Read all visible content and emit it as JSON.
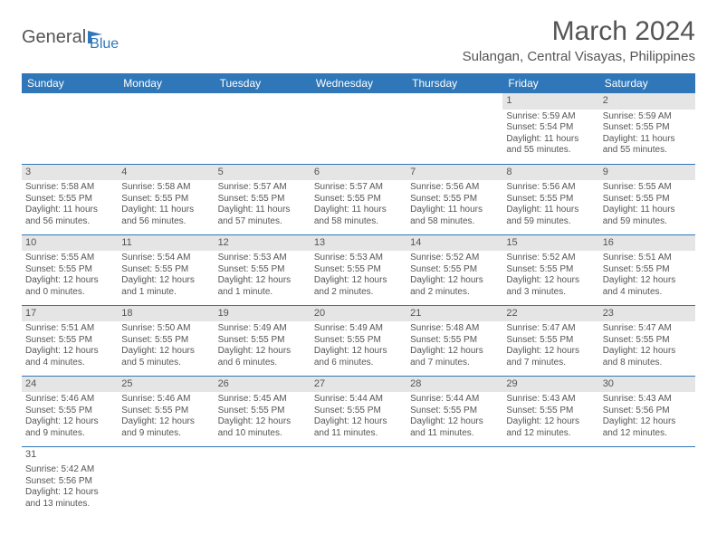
{
  "logo": {
    "text1": "General",
    "text2": "Blue"
  },
  "title": "March 2024",
  "location": "Sulangan, Central Visayas, Philippines",
  "dayHeaders": [
    "Sunday",
    "Monday",
    "Tuesday",
    "Wednesday",
    "Thursday",
    "Friday",
    "Saturday"
  ],
  "colors": {
    "headerBg": "#2f77b8",
    "headerText": "#ffffff",
    "bodyText": "#555555",
    "dayNumBg": "#e5e5e5",
    "cellBorder": "#2f77b8",
    "background": "#ffffff"
  },
  "weeks": [
    [
      null,
      null,
      null,
      null,
      null,
      {
        "num": "1",
        "sunrise": "Sunrise: 5:59 AM",
        "sunset": "Sunset: 5:54 PM",
        "daylight": "Daylight: 11 hours and 55 minutes."
      },
      {
        "num": "2",
        "sunrise": "Sunrise: 5:59 AM",
        "sunset": "Sunset: 5:55 PM",
        "daylight": "Daylight: 11 hours and 55 minutes."
      }
    ],
    [
      {
        "num": "3",
        "sunrise": "Sunrise: 5:58 AM",
        "sunset": "Sunset: 5:55 PM",
        "daylight": "Daylight: 11 hours and 56 minutes."
      },
      {
        "num": "4",
        "sunrise": "Sunrise: 5:58 AM",
        "sunset": "Sunset: 5:55 PM",
        "daylight": "Daylight: 11 hours and 56 minutes."
      },
      {
        "num": "5",
        "sunrise": "Sunrise: 5:57 AM",
        "sunset": "Sunset: 5:55 PM",
        "daylight": "Daylight: 11 hours and 57 minutes."
      },
      {
        "num": "6",
        "sunrise": "Sunrise: 5:57 AM",
        "sunset": "Sunset: 5:55 PM",
        "daylight": "Daylight: 11 hours and 58 minutes."
      },
      {
        "num": "7",
        "sunrise": "Sunrise: 5:56 AM",
        "sunset": "Sunset: 5:55 PM",
        "daylight": "Daylight: 11 hours and 58 minutes."
      },
      {
        "num": "8",
        "sunrise": "Sunrise: 5:56 AM",
        "sunset": "Sunset: 5:55 PM",
        "daylight": "Daylight: 11 hours and 59 minutes."
      },
      {
        "num": "9",
        "sunrise": "Sunrise: 5:55 AM",
        "sunset": "Sunset: 5:55 PM",
        "daylight": "Daylight: 11 hours and 59 minutes."
      }
    ],
    [
      {
        "num": "10",
        "sunrise": "Sunrise: 5:55 AM",
        "sunset": "Sunset: 5:55 PM",
        "daylight": "Daylight: 12 hours and 0 minutes."
      },
      {
        "num": "11",
        "sunrise": "Sunrise: 5:54 AM",
        "sunset": "Sunset: 5:55 PM",
        "daylight": "Daylight: 12 hours and 1 minute."
      },
      {
        "num": "12",
        "sunrise": "Sunrise: 5:53 AM",
        "sunset": "Sunset: 5:55 PM",
        "daylight": "Daylight: 12 hours and 1 minute."
      },
      {
        "num": "13",
        "sunrise": "Sunrise: 5:53 AM",
        "sunset": "Sunset: 5:55 PM",
        "daylight": "Daylight: 12 hours and 2 minutes."
      },
      {
        "num": "14",
        "sunrise": "Sunrise: 5:52 AM",
        "sunset": "Sunset: 5:55 PM",
        "daylight": "Daylight: 12 hours and 2 minutes."
      },
      {
        "num": "15",
        "sunrise": "Sunrise: 5:52 AM",
        "sunset": "Sunset: 5:55 PM",
        "daylight": "Daylight: 12 hours and 3 minutes."
      },
      {
        "num": "16",
        "sunrise": "Sunrise: 5:51 AM",
        "sunset": "Sunset: 5:55 PM",
        "daylight": "Daylight: 12 hours and 4 minutes."
      }
    ],
    [
      {
        "num": "17",
        "sunrise": "Sunrise: 5:51 AM",
        "sunset": "Sunset: 5:55 PM",
        "daylight": "Daylight: 12 hours and 4 minutes."
      },
      {
        "num": "18",
        "sunrise": "Sunrise: 5:50 AM",
        "sunset": "Sunset: 5:55 PM",
        "daylight": "Daylight: 12 hours and 5 minutes."
      },
      {
        "num": "19",
        "sunrise": "Sunrise: 5:49 AM",
        "sunset": "Sunset: 5:55 PM",
        "daylight": "Daylight: 12 hours and 6 minutes."
      },
      {
        "num": "20",
        "sunrise": "Sunrise: 5:49 AM",
        "sunset": "Sunset: 5:55 PM",
        "daylight": "Daylight: 12 hours and 6 minutes."
      },
      {
        "num": "21",
        "sunrise": "Sunrise: 5:48 AM",
        "sunset": "Sunset: 5:55 PM",
        "daylight": "Daylight: 12 hours and 7 minutes."
      },
      {
        "num": "22",
        "sunrise": "Sunrise: 5:47 AM",
        "sunset": "Sunset: 5:55 PM",
        "daylight": "Daylight: 12 hours and 7 minutes."
      },
      {
        "num": "23",
        "sunrise": "Sunrise: 5:47 AM",
        "sunset": "Sunset: 5:55 PM",
        "daylight": "Daylight: 12 hours and 8 minutes."
      }
    ],
    [
      {
        "num": "24",
        "sunrise": "Sunrise: 5:46 AM",
        "sunset": "Sunset: 5:55 PM",
        "daylight": "Daylight: 12 hours and 9 minutes."
      },
      {
        "num": "25",
        "sunrise": "Sunrise: 5:46 AM",
        "sunset": "Sunset: 5:55 PM",
        "daylight": "Daylight: 12 hours and 9 minutes."
      },
      {
        "num": "26",
        "sunrise": "Sunrise: 5:45 AM",
        "sunset": "Sunset: 5:55 PM",
        "daylight": "Daylight: 12 hours and 10 minutes."
      },
      {
        "num": "27",
        "sunrise": "Sunrise: 5:44 AM",
        "sunset": "Sunset: 5:55 PM",
        "daylight": "Daylight: 12 hours and 11 minutes."
      },
      {
        "num": "28",
        "sunrise": "Sunrise: 5:44 AM",
        "sunset": "Sunset: 5:55 PM",
        "daylight": "Daylight: 12 hours and 11 minutes."
      },
      {
        "num": "29",
        "sunrise": "Sunrise: 5:43 AM",
        "sunset": "Sunset: 5:55 PM",
        "daylight": "Daylight: 12 hours and 12 minutes."
      },
      {
        "num": "30",
        "sunrise": "Sunrise: 5:43 AM",
        "sunset": "Sunset: 5:56 PM",
        "daylight": "Daylight: 12 hours and 12 minutes."
      }
    ],
    [
      {
        "num": "31",
        "sunrise": "Sunrise: 5:42 AM",
        "sunset": "Sunset: 5:56 PM",
        "daylight": "Daylight: 12 hours and 13 minutes."
      },
      null,
      null,
      null,
      null,
      null,
      null
    ]
  ]
}
